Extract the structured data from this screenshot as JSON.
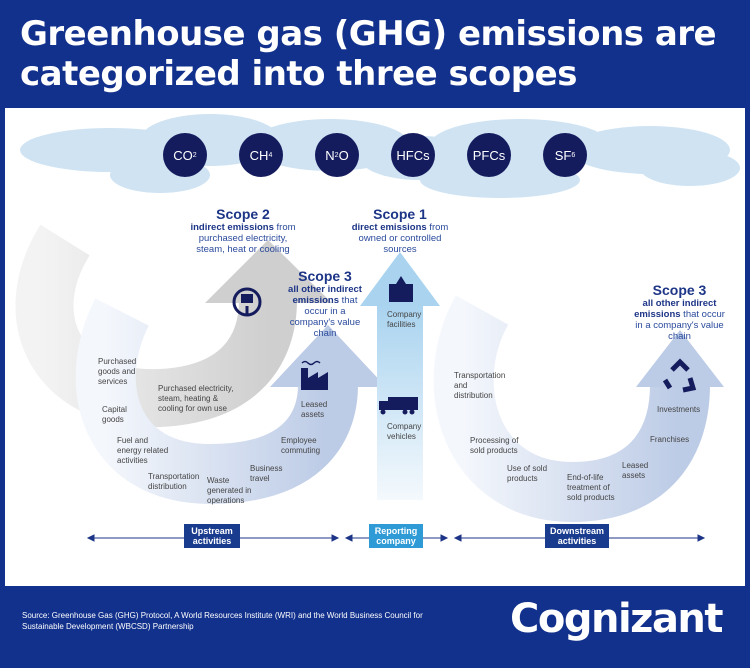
{
  "header": {
    "title": "Greenhouse gas (GHG) emissions are categorized into three scopes"
  },
  "gases": [
    {
      "base": "CO",
      "sub": "2"
    },
    {
      "base": "CH",
      "sub": "4"
    },
    {
      "base": "N",
      "sub": "2",
      "tail": "O"
    },
    {
      "base": "HFCs"
    },
    {
      "base": "PFCs"
    },
    {
      "base": "SF",
      "sub": "6"
    }
  ],
  "scope2": {
    "title": "Scope 2",
    "bold": "indirect emissions",
    "rest": " from purchased electricity, steam, heat or cooling",
    "icon": "electric-plug-icon",
    "item": "Purchased electricity, steam, heating & cooling for own use"
  },
  "scope1": {
    "title": "Scope 1",
    "bold": "direct emissions",
    "rest": " from owned or controlled sources",
    "items": [
      "Company facilities",
      "Company vehicles"
    ]
  },
  "scope3_up": {
    "title": "Scope 3",
    "bold": "all other indirect emissions",
    "rest": " that occur in a company's value chain",
    "items": [
      "Purchased goods and services",
      "Capital goods",
      "Fuel and energy related activities",
      "Transportation distribution",
      "Waste generated in operations",
      "Business travel",
      "Employee commuting",
      "Leased assets"
    ]
  },
  "scope3_down": {
    "title": "Scope 3",
    "bold": "all other indirect emissions",
    "rest": " that occur in a company's value chain",
    "items": [
      "Transportation and distribution",
      "Processing of sold products",
      "Use of sold products",
      "End-of-life treatment of sold products",
      "Leased assets",
      "Franchises",
      "Investments"
    ]
  },
  "timeline": {
    "upstream": "Upstream activities",
    "reporting": "Reporting company",
    "downstream": "Downstream activities"
  },
  "footer": {
    "source": "Source: Greenhouse Gas (GHG) Protocol, A World Resources Institute (WRI) and the World Business Council for Sustainable Development (WBCSD) Partnership",
    "logo": "Cognizant"
  },
  "colors": {
    "brand": "#12318c",
    "navy": "#151c5e",
    "reporting": "#2f9bd6",
    "cloud": "#c9e0f2"
  }
}
